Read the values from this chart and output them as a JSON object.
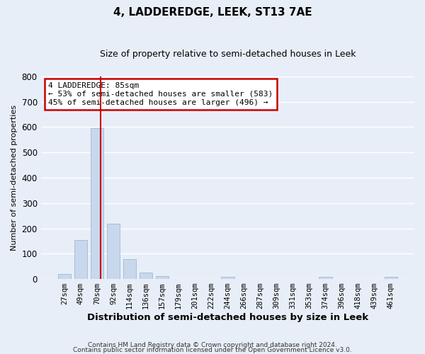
{
  "title": "4, LADDEREDGE, LEEK, ST13 7AE",
  "subtitle": "Size of property relative to semi-detached houses in Leek",
  "xlabel": "Distribution of semi-detached houses by size in Leek",
  "ylabel": "Number of semi-detached properties",
  "bar_color": "#c8d8ec",
  "bar_edge_color": "#a0b8d4",
  "bg_color": "#e8eef8",
  "grid_color": "#ffffff",
  "categories": [
    "27sqm",
    "49sqm",
    "70sqm",
    "92sqm",
    "114sqm",
    "136sqm",
    "157sqm",
    "179sqm",
    "201sqm",
    "222sqm",
    "244sqm",
    "266sqm",
    "287sqm",
    "309sqm",
    "331sqm",
    "353sqm",
    "374sqm",
    "396sqm",
    "418sqm",
    "439sqm",
    "461sqm"
  ],
  "values": [
    20,
    155,
    595,
    218,
    78,
    25,
    12,
    0,
    0,
    0,
    8,
    0,
    0,
    0,
    0,
    0,
    8,
    0,
    0,
    0,
    8
  ],
  "vline_x_bar_index": 2,
  "vline_x_offset": 0.2,
  "vline_color": "#cc0000",
  "annotation_box_edge": "#cc0000",
  "annotation_title": "4 LADDEREDGE: 85sqm",
  "annotation_line1": "← 53% of semi-detached houses are smaller (583)",
  "annotation_line2": "45% of semi-detached houses are larger (496) →",
  "ylim": [
    0,
    800
  ],
  "yticks": [
    0,
    100,
    200,
    300,
    400,
    500,
    600,
    700,
    800
  ],
  "footer1": "Contains HM Land Registry data © Crown copyright and database right 2024.",
  "footer2": "Contains public sector information licensed under the Open Government Licence v3.0."
}
